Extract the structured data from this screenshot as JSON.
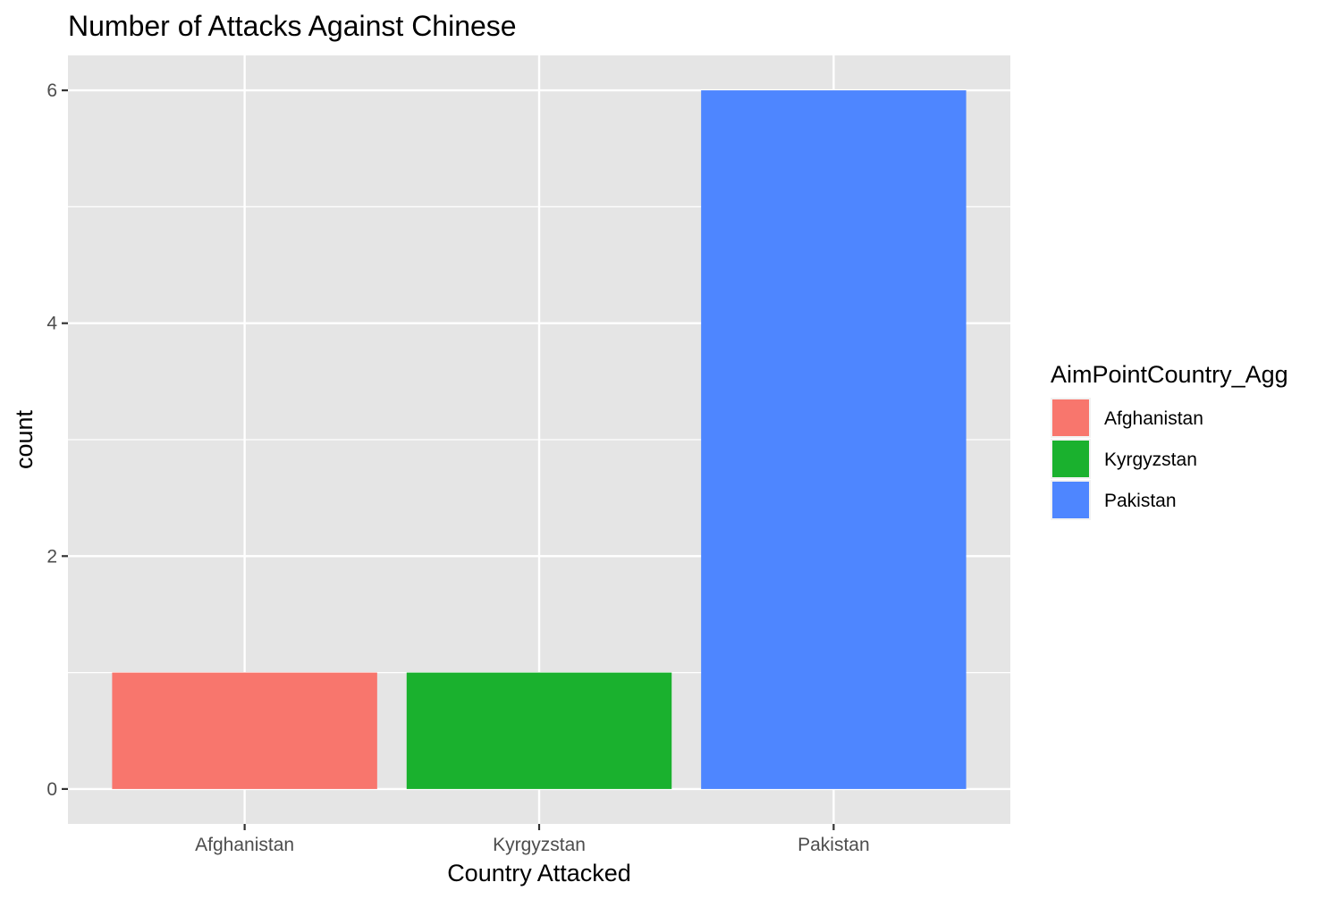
{
  "chart_data": {
    "type": "bar",
    "title": "Number of Attacks Against Chinese",
    "xlabel": "Country Attacked",
    "ylabel": "count",
    "categories": [
      "Afghanistan",
      "Kyrgyzstan",
      "Pakistan"
    ],
    "values": [
      1,
      1,
      6
    ],
    "colors": [
      "#F8766D",
      "#1AB12E",
      "#4E86FF"
    ],
    "ylim": [
      -0.3,
      6.3
    ],
    "yticks": [
      0,
      2,
      4,
      6
    ],
    "yticks_labels": [
      "0",
      "2",
      "4",
      "6"
    ],
    "grid": true,
    "legend": {
      "title": "AimPointCountry_Agg",
      "placement": "right",
      "entries": [
        "Afghanistan",
        "Kyrgyzstan",
        "Pakistan"
      ]
    }
  }
}
